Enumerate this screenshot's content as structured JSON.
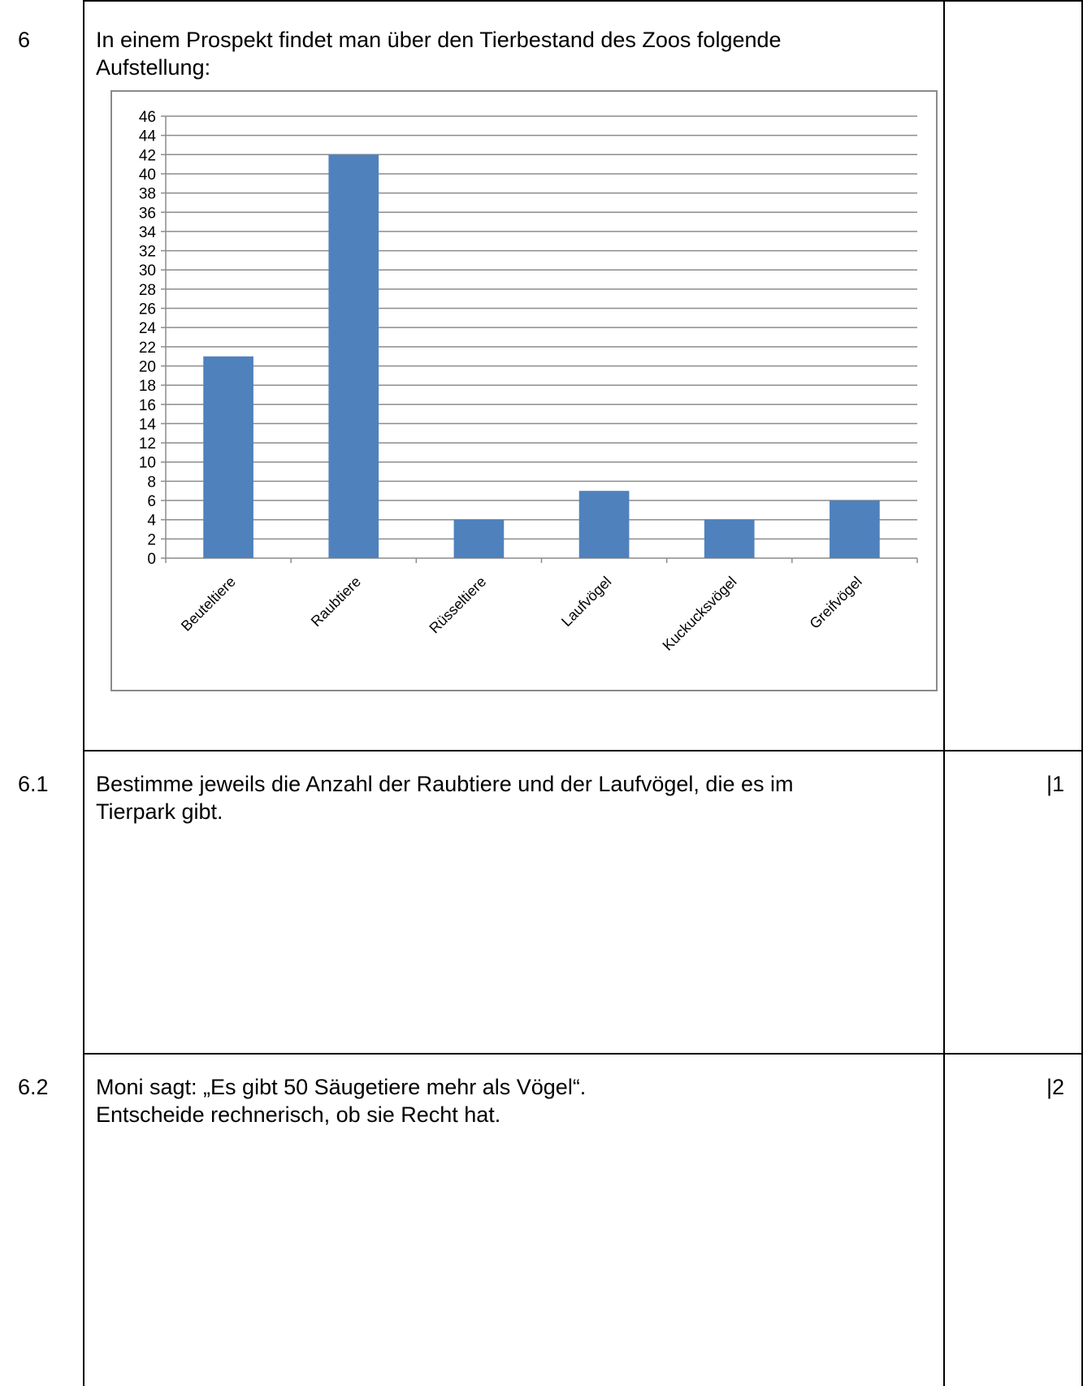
{
  "task": {
    "number": "6",
    "intro_line1": "In einem Prospekt findet man über den Tierbestand des Zoos folgende",
    "intro_line2": "Aufstellung:"
  },
  "subtasks": [
    {
      "number": "6.1",
      "line1": "Bestimme jeweils die Anzahl der Raubtiere und der Laufvögel, die es im",
      "line2": "Tierpark gibt.",
      "points": "|1"
    },
    {
      "number": "6.2",
      "line1": "Moni sagt: „Es gibt 50 Säugetiere mehr als Vögel“.",
      "line2": "Entscheide rechnerisch, ob sie Recht hat.",
      "points": "|2"
    }
  ],
  "chart_data": {
    "type": "bar",
    "categories": [
      "Beuteltiere",
      "Raubtiere",
      "Rüsseltiere",
      "Laufvögel",
      "Kuckucksvögel",
      "Greifvögel"
    ],
    "values": [
      21,
      42,
      4,
      7,
      4,
      6
    ],
    "ylim": [
      0,
      46
    ],
    "ytick_step": 2,
    "grid": true,
    "bar_color": "#4f81bd",
    "title": "",
    "xlabel": "",
    "ylabel": ""
  }
}
